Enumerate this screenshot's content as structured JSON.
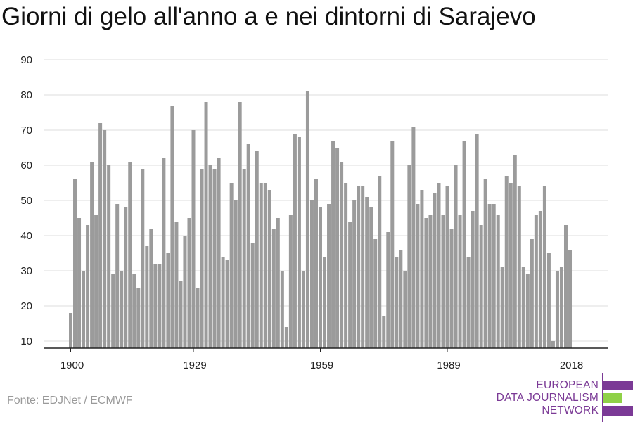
{
  "header": {
    "title": "Giorni di gelo all'anno a e nei dintorni di Sarajevo"
  },
  "footer": {
    "source": "Fonte: EDJNet / ECMWF"
  },
  "logo": {
    "line1": "EUROPEAN",
    "line2": "DATA JOURNALISM",
    "line3": "NETWORK",
    "colors": {
      "purple": "#7b3a96",
      "green": "#8fd147"
    }
  },
  "chart_data": {
    "type": "bar",
    "title": "Giorni di gelo all'anno a e nei dintorni di Sarajevo",
    "xlabel": "",
    "ylabel": "",
    "x_start": 1900,
    "x_end": 2018,
    "xticks": [
      "1900",
      "1929",
      "1959",
      "1989",
      "2018"
    ],
    "yticks": [
      10,
      20,
      30,
      40,
      50,
      60,
      70,
      80,
      90
    ],
    "ylim": [
      8,
      92
    ],
    "grid": true,
    "bar_color": "#9b9b9b",
    "values": [
      18,
      56,
      45,
      30,
      43,
      61,
      46,
      72,
      70,
      60,
      29,
      49,
      30,
      48,
      61,
      29,
      25,
      59,
      37,
      42,
      32,
      32,
      62,
      35,
      77,
      44,
      27,
      40,
      45,
      70,
      25,
      59,
      78,
      60,
      59,
      62,
      34,
      33,
      55,
      50,
      78,
      59,
      66,
      38,
      64,
      55,
      55,
      53,
      42,
      45,
      30,
      14,
      46,
      69,
      68,
      30,
      81,
      50,
      56,
      48,
      34,
      49,
      67,
      65,
      61,
      55,
      44,
      50,
      54,
      54,
      51,
      48,
      39,
      57,
      17,
      41,
      67,
      34,
      36,
      30,
      60,
      71,
      49,
      53,
      45,
      46,
      52,
      55,
      46,
      54,
      42,
      60,
      46,
      67,
      34,
      47,
      69,
      43,
      56,
      49,
      49,
      46,
      31,
      57,
      55,
      63,
      54,
      31,
      29,
      39,
      46,
      47,
      54,
      35,
      10,
      30,
      31,
      43,
      36
    ]
  }
}
